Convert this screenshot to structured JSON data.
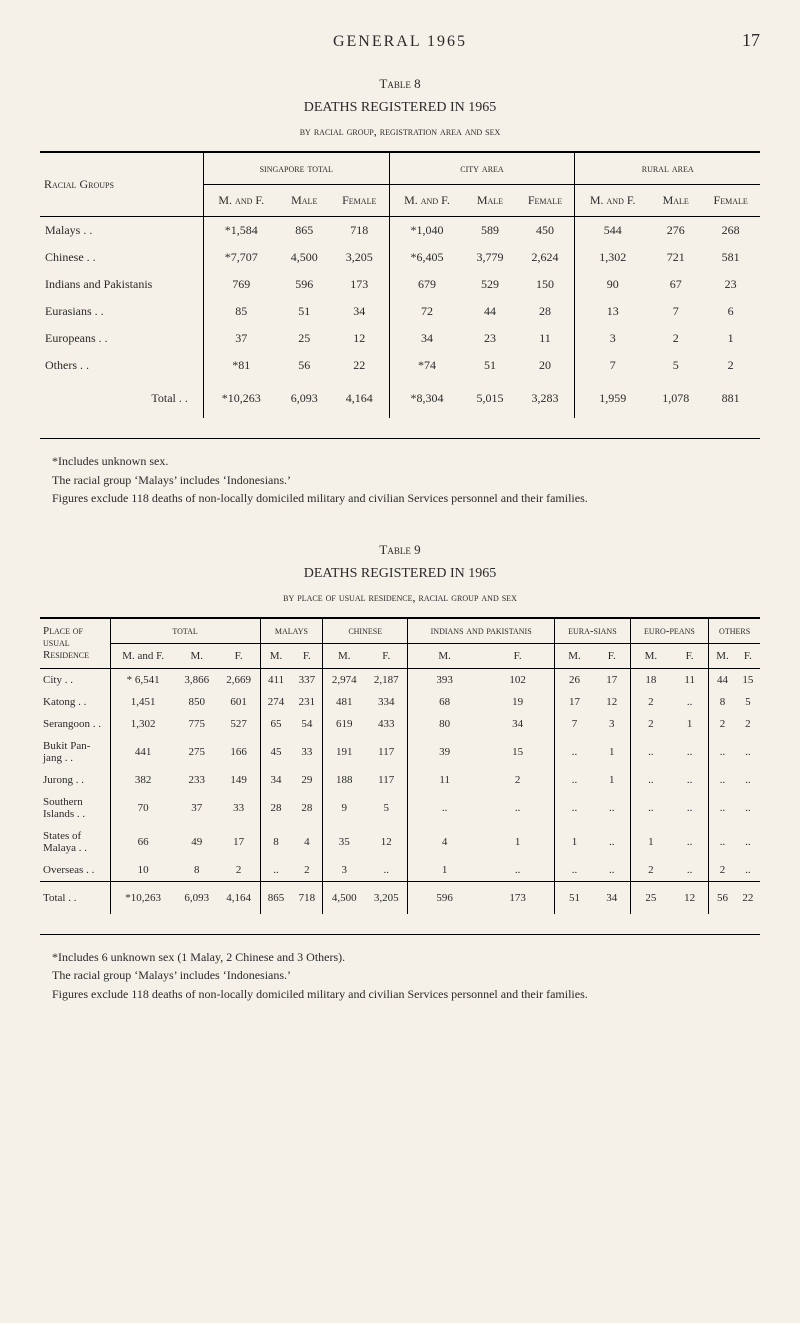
{
  "page": {
    "header_title": "GENERAL 1965",
    "number": "17"
  },
  "table8": {
    "label": "Table 8",
    "title": "DEATHS REGISTERED IN 1965",
    "subtitle": "by racial group, registration area and sex",
    "col_group_label": "Racial Groups",
    "areas": [
      "singapore total",
      "city area",
      "rural area"
    ],
    "subcols": [
      "M. and F.",
      "Male",
      "Female"
    ],
    "rows": [
      {
        "label": "Malays",
        "v": [
          "*1,584",
          "865",
          "718",
          "*1,040",
          "589",
          "450",
          "544",
          "276",
          "268"
        ]
      },
      {
        "label": "Chinese",
        "v": [
          "*7,707",
          "4,500",
          "3,205",
          "*6,405",
          "3,779",
          "2,624",
          "1,302",
          "721",
          "581"
        ]
      },
      {
        "label": "Indians and Pakistanis",
        "v": [
          "769",
          "596",
          "173",
          "679",
          "529",
          "150",
          "90",
          "67",
          "23"
        ]
      },
      {
        "label": "Eurasians",
        "v": [
          "85",
          "51",
          "34",
          "72",
          "44",
          "28",
          "13",
          "7",
          "6"
        ]
      },
      {
        "label": "Europeans",
        "v": [
          "37",
          "25",
          "12",
          "34",
          "23",
          "11",
          "3",
          "2",
          "1"
        ]
      },
      {
        "label": "Others",
        "v": [
          "*81",
          "56",
          "22",
          "*74",
          "51",
          "20",
          "7",
          "5",
          "2"
        ]
      }
    ],
    "total_label": "Total",
    "total": [
      "*10,263",
      "6,093",
      "4,164",
      "*8,304",
      "5,015",
      "3,283",
      "1,959",
      "1,078",
      "881"
    ],
    "footnotes": [
      "*Includes unknown sex.",
      "The racial group ‘Malays’ includes ‘Indonesians.’",
      "Figures exclude 118 deaths of non-locally domiciled military and civilian Services personnel and their families."
    ]
  },
  "table9": {
    "label": "Table 9",
    "title": "DEATHS REGISTERED IN 1965",
    "subtitle": "by place of usual residence, racial group and sex",
    "row_group_label": "Place of usual Residence",
    "groups": [
      "total",
      "malays",
      "chinese",
      "indians and pakistanis",
      "eura-sians",
      "euro-peans",
      "others"
    ],
    "subcols3": [
      "M. and F.",
      "M.",
      "F."
    ],
    "subcols2": [
      "M.",
      "F."
    ],
    "rows": [
      {
        "label": "City",
        "v": [
          "* 6,541",
          "3,866",
          "2,669",
          "411",
          "337",
          "2,974",
          "2,187",
          "393",
          "102",
          "26",
          "17",
          "18",
          "11",
          "44",
          "15"
        ]
      },
      {
        "label": "Katong",
        "v": [
          "1,451",
          "850",
          "601",
          "274",
          "231",
          "481",
          "334",
          "68",
          "19",
          "17",
          "12",
          "2",
          "..",
          "8",
          "5"
        ]
      },
      {
        "label": "Serangoon",
        "v": [
          "1,302",
          "775",
          "527",
          "65",
          "54",
          "619",
          "433",
          "80",
          "34",
          "7",
          "3",
          "2",
          "1",
          "2",
          "2"
        ]
      },
      {
        "label": "Bukit Pan-jang",
        "v": [
          "441",
          "275",
          "166",
          "45",
          "33",
          "191",
          "117",
          "39",
          "15",
          "..",
          "1",
          "..",
          "..",
          "..",
          ".."
        ]
      },
      {
        "label": "Jurong",
        "v": [
          "382",
          "233",
          "149",
          "34",
          "29",
          "188",
          "117",
          "11",
          "2",
          "..",
          "1",
          "..",
          "..",
          "..",
          ".."
        ]
      },
      {
        "label": "Southern Islands",
        "v": [
          "70",
          "37",
          "33",
          "28",
          "28",
          "9",
          "5",
          "..",
          "..",
          "..",
          "..",
          "..",
          "..",
          "..",
          ".."
        ]
      },
      {
        "label": "States of Malaya",
        "v": [
          "66",
          "49",
          "17",
          "8",
          "4",
          "35",
          "12",
          "4",
          "1",
          "1",
          "..",
          "1",
          "..",
          "..",
          ".."
        ]
      },
      {
        "label": "Overseas",
        "v": [
          "10",
          "8",
          "2",
          "..",
          "2",
          "3",
          "..",
          "1",
          "..",
          "..",
          "..",
          "2",
          "..",
          "2",
          ".."
        ]
      }
    ],
    "total_label": "Total",
    "total": [
      "*10,263",
      "6,093",
      "4,164",
      "865",
      "718",
      "4,500",
      "3,205",
      "596",
      "173",
      "51",
      "34",
      "25",
      "12",
      "56",
      "22"
    ],
    "footnotes": [
      "*Includes 6 unknown sex (1 Malay, 2 Chinese and 3 Others).",
      "The racial group ‘Malays’ includes ‘Indonesians.’",
      "Figures exclude 118 deaths of non-locally domiciled military and civilian Services personnel and their families."
    ]
  },
  "colors": {
    "background": "#f5f1e8",
    "text": "#2a2a2a",
    "rule": "#000000"
  }
}
